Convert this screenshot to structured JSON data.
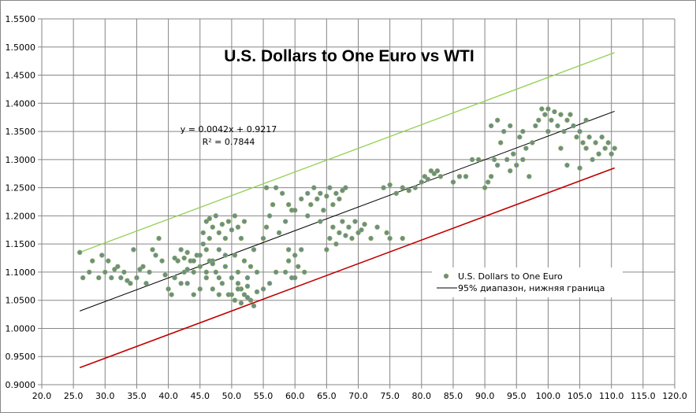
{
  "chart_data": {
    "type": "scatter",
    "title": "U.S. Dollars to One Euro vs WTI",
    "xlabel": "",
    "ylabel": "",
    "xlim": [
      20,
      120
    ],
    "ylim": [
      0.9,
      1.55
    ],
    "xticks": [
      "20.0",
      "25.0",
      "30.0",
      "35.0",
      "40.0",
      "45.0",
      "50.0",
      "55.0",
      "60.0",
      "65.0",
      "70.0",
      "75.0",
      "80.0",
      "85.0",
      "90.0",
      "95.0",
      "100.0",
      "105.0",
      "110.0",
      "115.0",
      "120.0"
    ],
    "yticks": [
      "0.9000",
      "0.9500",
      "1.0000",
      "1.0500",
      "1.1000",
      "1.1500",
      "1.2000",
      "1.2500",
      "1.3000",
      "1.3500",
      "1.4000",
      "1.4500",
      "1.5000",
      "1.5500"
    ],
    "grid": true,
    "legend_position": "right-middle",
    "legend": [
      "U.S. Dollars to One Euro",
      "95% диапазон, нижняя граница"
    ],
    "trendline": {
      "equation": "y = 0.0042x + 0.9217",
      "r2": "R² = 0.7844",
      "slope": 0.0042,
      "intercept": 0.9217,
      "x_range": [
        26,
        110.5
      ]
    },
    "upper_band": {
      "slope": 0.0042,
      "intercept": 1.026,
      "x_range": [
        26,
        110.5
      ],
      "color": "#92d050"
    },
    "lower_band": {
      "slope": 0.0042,
      "intercept": 0.821,
      "x_range": [
        26,
        110.5
      ],
      "color": "#c00000"
    },
    "colors": {
      "point_fill": "#6b8e88",
      "point_stroke": "#8aa85a",
      "trend": "#000000"
    },
    "series": [
      {
        "name": "U.S. Dollars to One Euro",
        "points": [
          [
            26,
            1.135
          ],
          [
            26.5,
            1.09
          ],
          [
            27.5,
            1.1
          ],
          [
            28,
            1.12
          ],
          [
            29,
            1.09
          ],
          [
            29.5,
            1.13
          ],
          [
            30,
            1.1
          ],
          [
            30.5,
            1.12
          ],
          [
            31,
            1.09
          ],
          [
            31.5,
            1.105
          ],
          [
            32,
            1.11
          ],
          [
            32.5,
            1.09
          ],
          [
            33,
            1.1
          ],
          [
            33.5,
            1.085
          ],
          [
            34,
            1.08
          ],
          [
            34.5,
            1.14
          ],
          [
            35,
            1.09
          ],
          [
            35.5,
            1.105
          ],
          [
            36,
            1.11
          ],
          [
            36.5,
            1.08
          ],
          [
            37,
            1.1
          ],
          [
            37.5,
            1.14
          ],
          [
            38,
            1.13
          ],
          [
            38.5,
            1.16
          ],
          [
            39,
            1.12
          ],
          [
            39.5,
            1.095
          ],
          [
            40,
            1.07
          ],
          [
            40.5,
            1.06
          ],
          [
            41,
            1.09
          ],
          [
            41.5,
            1.12
          ],
          [
            42,
            1.14
          ],
          [
            42.5,
            1.1
          ],
          [
            43,
            1.08
          ],
          [
            43.5,
            1.12
          ],
          [
            44,
            1.06
          ],
          [
            44.5,
            1.13
          ],
          [
            45,
            1.11
          ],
          [
            45.5,
            1.15
          ],
          [
            46,
            1.09
          ],
          [
            46.5,
            1.12
          ],
          [
            47,
            1.07
          ],
          [
            47.5,
            1.1
          ],
          [
            48,
            1.14
          ],
          [
            48.5,
            1.08
          ],
          [
            49,
            1.11
          ],
          [
            49.5,
            1.06
          ],
          [
            50,
            1.09
          ],
          [
            50.5,
            1.13
          ],
          [
            51,
            1.1
          ],
          [
            51.5,
            1.07
          ],
          [
            52,
            1.12
          ],
          [
            52.5,
            1.09
          ],
          [
            53,
            1.11
          ],
          [
            53.5,
            1.14
          ],
          [
            54,
            1.1
          ],
          [
            41,
            1.125
          ],
          [
            42,
            1.08
          ],
          [
            43,
            1.135
          ],
          [
            44,
            1.1
          ],
          [
            45,
            1.07
          ],
          [
            46,
            1.14
          ],
          [
            47,
            1.12
          ],
          [
            48,
            1.06
          ],
          [
            49,
            1.13
          ],
          [
            44,
            1.12
          ],
          [
            45,
            1.13
          ],
          [
            46,
            1.1
          ],
          [
            47,
            1.115
          ],
          [
            43,
            1.105
          ],
          [
            48,
            1.09
          ],
          [
            42.5,
            1.125
          ],
          [
            45.5,
            1.17
          ],
          [
            46,
            1.19
          ],
          [
            46.5,
            1.16
          ],
          [
            47,
            1.18
          ],
          [
            47.5,
            1.2
          ],
          [
            48,
            1.17
          ],
          [
            48.5,
            1.185
          ],
          [
            49,
            1.16
          ],
          [
            49.5,
            1.19
          ],
          [
            50,
            1.175
          ],
          [
            50.5,
            1.2
          ],
          [
            51,
            1.18
          ],
          [
            51.5,
            1.16
          ],
          [
            52,
            1.19
          ],
          [
            46.5,
            1.195
          ],
          [
            50,
            1.06
          ],
          [
            50.5,
            1.05
          ],
          [
            51,
            1.07
          ],
          [
            51.5,
            1.045
          ],
          [
            52,
            1.06
          ],
          [
            52.5,
            1.075
          ],
          [
            53,
            1.05
          ],
          [
            53.5,
            1.04
          ],
          [
            54,
            1.065
          ],
          [
            51,
            1.08
          ],
          [
            52.5,
            1.055
          ],
          [
            55,
            1.16
          ],
          [
            55.5,
            1.18
          ],
          [
            56,
            1.2
          ],
          [
            56.5,
            1.22
          ],
          [
            57,
            1.25
          ],
          [
            57.5,
            1.17
          ],
          [
            58,
            1.24
          ],
          [
            58.5,
            1.19
          ],
          [
            59,
            1.22
          ],
          [
            59.5,
            1.21
          ],
          [
            55.5,
            1.25
          ],
          [
            56,
            1.08
          ],
          [
            57,
            1.1
          ],
          [
            55,
            1.07
          ],
          [
            58.5,
            1.1
          ],
          [
            59,
            1.12
          ],
          [
            59.5,
            1.09
          ],
          [
            60,
            1.13
          ],
          [
            60.5,
            1.11
          ],
          [
            61,
            1.14
          ],
          [
            61.5,
            1.1
          ],
          [
            59,
            1.14
          ],
          [
            60,
            1.09
          ],
          [
            60,
            1.21
          ],
          [
            61,
            1.23
          ],
          [
            62,
            1.24
          ],
          [
            62.5,
            1.22
          ],
          [
            63,
            1.25
          ],
          [
            63.5,
            1.23
          ],
          [
            64,
            1.24
          ],
          [
            64.5,
            1.21
          ],
          [
            65,
            1.235
          ],
          [
            65.5,
            1.25
          ],
          [
            66,
            1.22
          ],
          [
            66.5,
            1.24
          ],
          [
            67,
            1.23
          ],
          [
            67.5,
            1.245
          ],
          [
            68,
            1.25
          ],
          [
            62,
            1.2
          ],
          [
            64,
            1.19
          ],
          [
            65,
            1.14
          ],
          [
            65.5,
            1.16
          ],
          [
            66,
            1.18
          ],
          [
            66.5,
            1.15
          ],
          [
            67,
            1.17
          ],
          [
            67.5,
            1.19
          ],
          [
            68,
            1.165
          ],
          [
            68.5,
            1.18
          ],
          [
            69,
            1.16
          ],
          [
            69.5,
            1.19
          ],
          [
            70,
            1.17
          ],
          [
            70.5,
            1.175
          ],
          [
            71,
            1.185
          ],
          [
            72,
            1.16
          ],
          [
            73,
            1.18
          ],
          [
            74.5,
            1.17
          ],
          [
            75,
            1.16
          ],
          [
            74,
            1.25
          ],
          [
            75,
            1.255
          ],
          [
            76,
            1.24
          ],
          [
            77,
            1.25
          ],
          [
            78,
            1.245
          ],
          [
            79,
            1.25
          ],
          [
            77,
            1.16
          ],
          [
            80,
            1.26
          ],
          [
            80.5,
            1.27
          ],
          [
            81,
            1.265
          ],
          [
            81.5,
            1.28
          ],
          [
            82,
            1.275
          ],
          [
            82.5,
            1.28
          ],
          [
            83,
            1.27
          ],
          [
            85,
            1.26
          ],
          [
            86,
            1.27
          ],
          [
            87,
            1.27
          ],
          [
            88,
            1.3
          ],
          [
            89,
            1.3
          ],
          [
            90,
            1.25
          ],
          [
            90.5,
            1.26
          ],
          [
            91,
            1.27
          ],
          [
            91.5,
            1.3
          ],
          [
            92,
            1.29
          ],
          [
            91,
            1.36
          ],
          [
            92,
            1.37
          ],
          [
            93,
            1.35
          ],
          [
            93.5,
            1.3
          ],
          [
            94,
            1.28
          ],
          [
            94.5,
            1.31
          ],
          [
            95,
            1.29
          ],
          [
            95.5,
            1.34
          ],
          [
            96,
            1.3
          ],
          [
            96.5,
            1.32
          ],
          [
            97,
            1.27
          ],
          [
            97.5,
            1.33
          ],
          [
            98,
            1.36
          ],
          [
            92.5,
            1.33
          ],
          [
            94,
            1.36
          ],
          [
            96,
            1.35
          ],
          [
            98.5,
            1.37
          ],
          [
            99,
            1.39
          ],
          [
            99.5,
            1.38
          ],
          [
            100,
            1.39
          ],
          [
            100.5,
            1.37
          ],
          [
            101,
            1.385
          ],
          [
            101.5,
            1.36
          ],
          [
            102,
            1.38
          ],
          [
            102.5,
            1.35
          ],
          [
            103,
            1.37
          ],
          [
            103.5,
            1.38
          ],
          [
            104,
            1.36
          ],
          [
            104.5,
            1.34
          ],
          [
            100,
            1.35
          ],
          [
            102,
            1.32
          ],
          [
            103,
            1.29
          ],
          [
            105,
            1.35
          ],
          [
            105.5,
            1.33
          ],
          [
            106,
            1.32
          ],
          [
            106.5,
            1.34
          ],
          [
            107,
            1.3
          ],
          [
            107.5,
            1.33
          ],
          [
            108,
            1.31
          ],
          [
            108.5,
            1.34
          ],
          [
            109,
            1.32
          ],
          [
            109.5,
            1.33
          ],
          [
            110,
            1.31
          ],
          [
            110.5,
            1.32
          ],
          [
            105,
            1.285
          ],
          [
            106,
            1.37
          ]
        ]
      }
    ]
  }
}
